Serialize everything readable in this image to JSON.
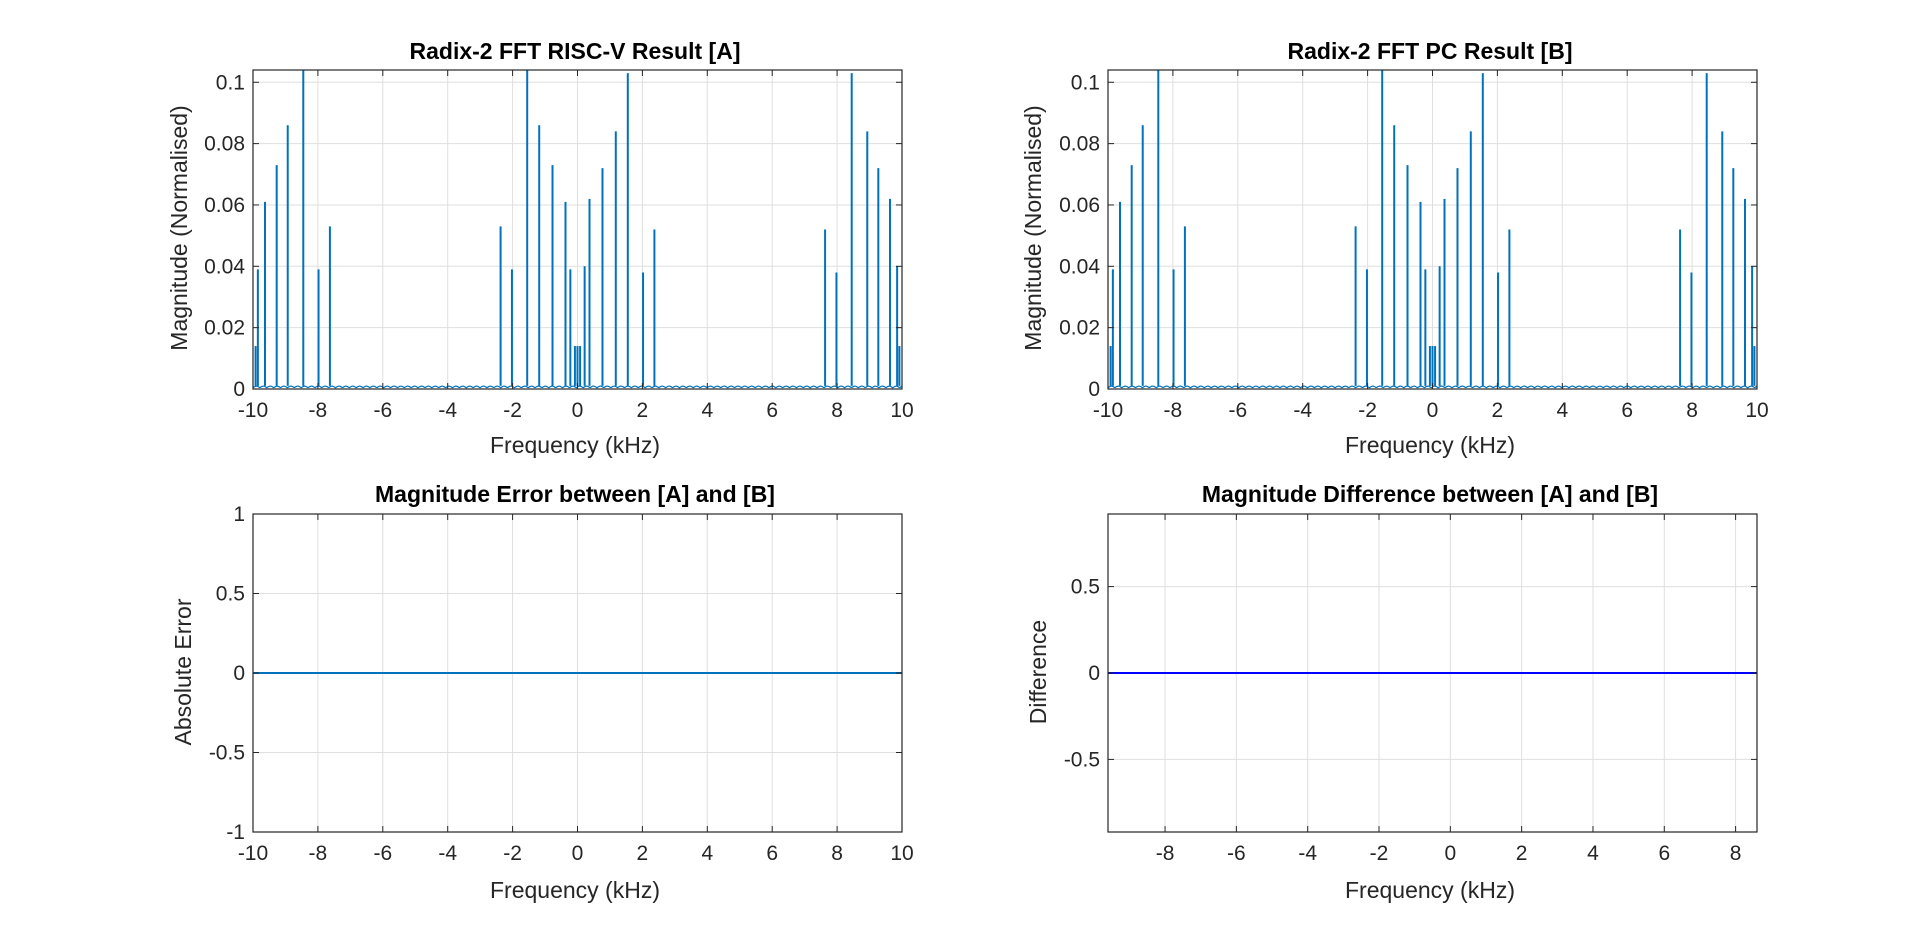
{
  "chart_data": [
    {
      "id": "riscv",
      "type": "line",
      "title": "Radix-2 FFT RISC-V Result [A]",
      "xlabel": "Frequency (kHz)",
      "ylabel": "Magnitude (Normalised)",
      "xlim": [
        -10,
        10
      ],
      "ylim": [
        0,
        0.104
      ],
      "xticks": [
        -10,
        -8,
        -6,
        -4,
        -2,
        0,
        2,
        4,
        6,
        8,
        10
      ],
      "xtick_labels": [
        "-10",
        "-8",
        "-6",
        "-4",
        "-2",
        "0",
        "2",
        "4",
        "6",
        "8",
        "10"
      ],
      "yticks": [
        0,
        0.02,
        0.04,
        0.06,
        0.08,
        0.1
      ],
      "ytick_labels": [
        "0",
        "0.02",
        "0.04",
        "0.06",
        "0.08",
        "0.1"
      ],
      "grid": true,
      "color": "#0072BD",
      "series": [
        {
          "peaks": [
            {
              "x": -9.92,
              "y": 0.014
            },
            {
              "x": -9.85,
              "y": 0.039
            },
            {
              "x": -9.63,
              "y": 0.061
            },
            {
              "x": -9.27,
              "y": 0.073
            },
            {
              "x": -8.93,
              "y": 0.086
            },
            {
              "x": -8.45,
              "y": 0.104
            },
            {
              "x": -7.98,
              "y": 0.039
            },
            {
              "x": -7.63,
              "y": 0.053
            },
            {
              "x": -2.37,
              "y": 0.053
            },
            {
              "x": -2.02,
              "y": 0.039
            },
            {
              "x": -1.55,
              "y": 0.104
            },
            {
              "x": -1.18,
              "y": 0.086
            },
            {
              "x": -0.77,
              "y": 0.073
            },
            {
              "x": -0.37,
              "y": 0.061
            },
            {
              "x": -0.22,
              "y": 0.039
            },
            {
              "x": -0.08,
              "y": 0.014
            },
            {
              "x": 0.0,
              "y": 0.014
            },
            {
              "x": 0.08,
              "y": 0.014
            },
            {
              "x": 0.22,
              "y": 0.04
            },
            {
              "x": 0.37,
              "y": 0.062
            },
            {
              "x": 0.77,
              "y": 0.072
            },
            {
              "x": 1.18,
              "y": 0.084
            },
            {
              "x": 1.55,
              "y": 0.103
            },
            {
              "x": 2.02,
              "y": 0.038
            },
            {
              "x": 2.37,
              "y": 0.052
            },
            {
              "x": 7.63,
              "y": 0.052
            },
            {
              "x": 7.98,
              "y": 0.038
            },
            {
              "x": 8.45,
              "y": 0.103
            },
            {
              "x": 8.93,
              "y": 0.084
            },
            {
              "x": 9.27,
              "y": 0.072
            },
            {
              "x": 9.63,
              "y": 0.062
            },
            {
              "x": 9.85,
              "y": 0.04
            },
            {
              "x": 9.92,
              "y": 0.014
            }
          ],
          "noise_floor": 0.001
        }
      ]
    },
    {
      "id": "pc",
      "type": "line",
      "title": "Radix-2 FFT PC Result [B]",
      "xlabel": "Frequency (kHz)",
      "ylabel": "Magnitude (Normalised)",
      "xlim": [
        -10,
        10
      ],
      "ylim": [
        0,
        0.104
      ],
      "xticks": [
        -10,
        -8,
        -6,
        -4,
        -2,
        0,
        2,
        4,
        6,
        8,
        10
      ],
      "xtick_labels": [
        "-10",
        "-8",
        "-6",
        "-4",
        "-2",
        "0",
        "2",
        "4",
        "6",
        "8",
        "10"
      ],
      "yticks": [
        0,
        0.02,
        0.04,
        0.06,
        0.08,
        0.1
      ],
      "ytick_labels": [
        "0",
        "0.02",
        "0.04",
        "0.06",
        "0.08",
        "0.1"
      ],
      "grid": true,
      "color": "#0072BD",
      "series": [
        {
          "peaks": [
            {
              "x": -9.92,
              "y": 0.014
            },
            {
              "x": -9.85,
              "y": 0.039
            },
            {
              "x": -9.63,
              "y": 0.061
            },
            {
              "x": -9.27,
              "y": 0.073
            },
            {
              "x": -8.93,
              "y": 0.086
            },
            {
              "x": -8.45,
              "y": 0.104
            },
            {
              "x": -7.98,
              "y": 0.039
            },
            {
              "x": -7.63,
              "y": 0.053
            },
            {
              "x": -2.37,
              "y": 0.053
            },
            {
              "x": -2.02,
              "y": 0.039
            },
            {
              "x": -1.55,
              "y": 0.104
            },
            {
              "x": -1.18,
              "y": 0.086
            },
            {
              "x": -0.77,
              "y": 0.073
            },
            {
              "x": -0.37,
              "y": 0.061
            },
            {
              "x": -0.22,
              "y": 0.039
            },
            {
              "x": -0.08,
              "y": 0.014
            },
            {
              "x": 0.0,
              "y": 0.014
            },
            {
              "x": 0.08,
              "y": 0.014
            },
            {
              "x": 0.22,
              "y": 0.04
            },
            {
              "x": 0.37,
              "y": 0.062
            },
            {
              "x": 0.77,
              "y": 0.072
            },
            {
              "x": 1.18,
              "y": 0.084
            },
            {
              "x": 1.55,
              "y": 0.103
            },
            {
              "x": 2.02,
              "y": 0.038
            },
            {
              "x": 2.37,
              "y": 0.052
            },
            {
              "x": 7.63,
              "y": 0.052
            },
            {
              "x": 7.98,
              "y": 0.038
            },
            {
              "x": 8.45,
              "y": 0.103
            },
            {
              "x": 8.93,
              "y": 0.084
            },
            {
              "x": 9.27,
              "y": 0.072
            },
            {
              "x": 9.63,
              "y": 0.062
            },
            {
              "x": 9.85,
              "y": 0.04
            },
            {
              "x": 9.92,
              "y": 0.014
            }
          ],
          "noise_floor": 0.001
        }
      ]
    },
    {
      "id": "error",
      "type": "line",
      "title": "Magnitude Error between [A] and [B]",
      "xlabel": "Frequency (kHz)",
      "ylabel": "Absolute Error",
      "xlim": [
        -10,
        10
      ],
      "ylim": [
        -1,
        1
      ],
      "xticks": [
        -10,
        -8,
        -6,
        -4,
        -2,
        0,
        2,
        4,
        6,
        8,
        10
      ],
      "xtick_labels": [
        "-10",
        "-8",
        "-6",
        "-4",
        "-2",
        "0",
        "2",
        "4",
        "6",
        "8",
        "10"
      ],
      "yticks": [
        -1,
        -0.5,
        0,
        0.5,
        1
      ],
      "ytick_labels": [
        "-1",
        "-0.5",
        "0",
        "0.5",
        "1"
      ],
      "grid": true,
      "color": "#0072BD",
      "series": [
        {
          "x": [
            -10,
            10
          ],
          "values": [
            0,
            0
          ]
        }
      ]
    },
    {
      "id": "difference",
      "type": "line",
      "title": "Magnitude Difference between [A] and [B]",
      "xlabel": "Frequency (kHz)",
      "ylabel": "Difference",
      "xlim": [
        -9.6,
        8.6
      ],
      "ylim": [
        -0.92,
        0.92
      ],
      "xticks": [
        -8,
        -6,
        -4,
        -2,
        0,
        2,
        4,
        6,
        8
      ],
      "xtick_labels": [
        "-8",
        "-6",
        "-4",
        "-2",
        "0",
        "2",
        "4",
        "6",
        "8"
      ],
      "yticks": [
        -0.5,
        0,
        0.5
      ],
      "ytick_labels": [
        "-0.5",
        "0",
        "0.5"
      ],
      "grid": true,
      "color": "#0000FF",
      "series": [
        {
          "x": [
            -9.6,
            8.6
          ],
          "values": [
            0,
            0
          ]
        }
      ]
    }
  ]
}
